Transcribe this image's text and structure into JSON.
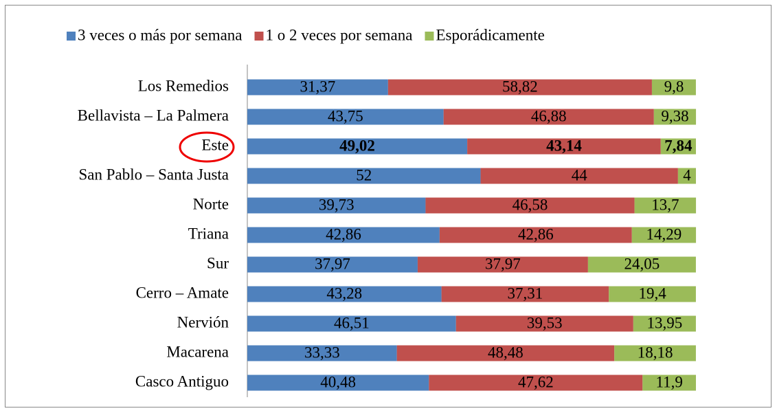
{
  "chart_data": {
    "type": "stacked_bar_horizontal",
    "categories": [
      "Los Remedios",
      "Bellavista – La Palmera",
      "Este",
      "San Pablo – Santa Justa",
      "Norte",
      "Triana",
      "Sur",
      "Cerro – Amate",
      "Nervión",
      "Macarena",
      "Casco Antiguo"
    ],
    "series": [
      {
        "name": "3 veces o más por semana",
        "color": "#4f81bd",
        "values": [
          31.37,
          43.75,
          49.02,
          52,
          39.73,
          42.86,
          37.97,
          43.28,
          46.51,
          33.33,
          40.48
        ],
        "value_labels": [
          "31,37",
          "43,75",
          "49,02",
          "52",
          "39,73",
          "42,86",
          "37,97",
          "43,28",
          "46,51",
          "33,33",
          "40,48"
        ]
      },
      {
        "name": "1 o 2 veces por semana",
        "color": "#c0504d",
        "values": [
          58.82,
          46.88,
          43.14,
          44,
          46.58,
          42.86,
          37.97,
          37.31,
          39.53,
          48.48,
          47.62
        ],
        "value_labels": [
          "58,82",
          "46,88",
          "43,14",
          "44",
          "46,58",
          "42,86",
          "37,97",
          "37,31",
          "39,53",
          "48,48",
          "47,62"
        ]
      },
      {
        "name": "Esporádicamente",
        "color": "#9bbb59",
        "values": [
          9.8,
          9.38,
          7.84,
          4,
          13.7,
          14.29,
          24.05,
          19.4,
          13.95,
          18.18,
          11.9
        ],
        "value_labels": [
          "9,8",
          "9,38",
          "7,84",
          "4",
          "13,7",
          "14,29",
          "24,05",
          "19,4",
          "13,95",
          "18,18",
          "11,9"
        ]
      }
    ],
    "xlim": [
      0,
      100
    ],
    "legend": "top"
  }
}
